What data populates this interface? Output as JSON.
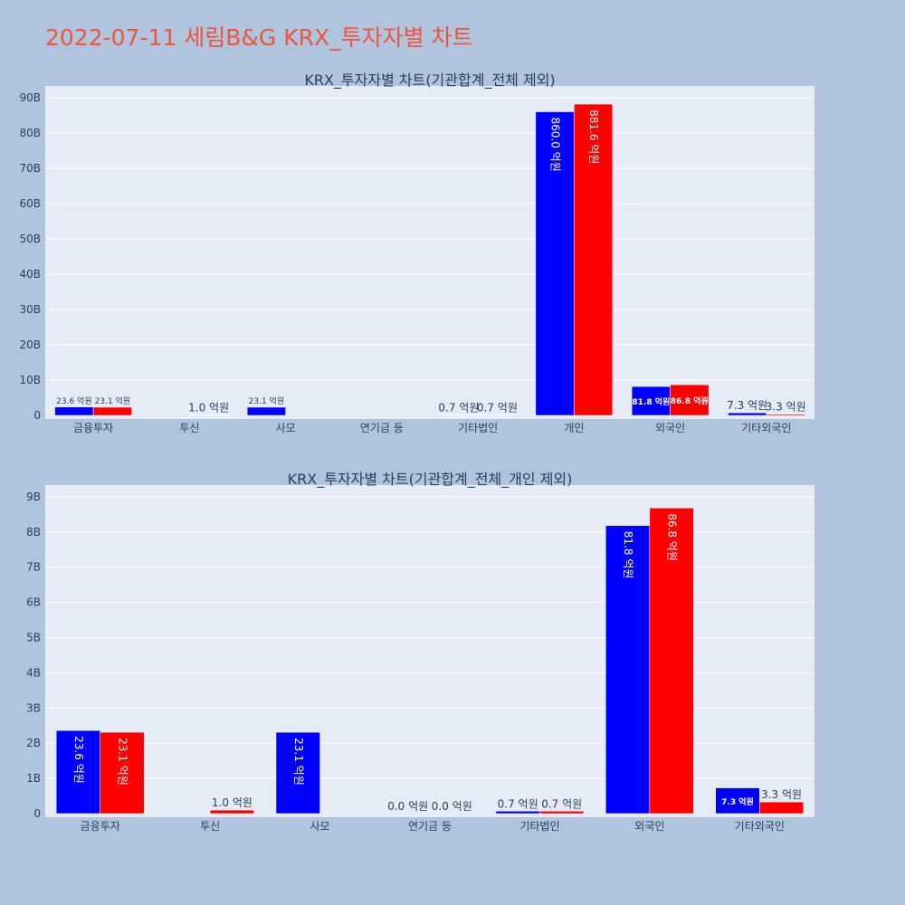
{
  "title": "2022-07-11 세림B&G KRX_투자자별 차트",
  "colors": {
    "series1": "#0000ff",
    "series2": "#ff0000",
    "plot_bg": "#e5ecf6",
    "page_bg": "#b0c4de",
    "title": "#ef553b",
    "text": "#2a3f5f"
  },
  "chart_data": [
    {
      "type": "bar",
      "title": "KRX_투자자별 차트(기관합계_전체 제외)",
      "categories": [
        "금융투자",
        "투신",
        "사모",
        "연기금 등",
        "기타법인",
        "개인",
        "외국인",
        "기타외국인"
      ],
      "yticks": [
        "0",
        "10B",
        "20B",
        "30B",
        "40B",
        "50B",
        "60B",
        "70B",
        "80B",
        "90B"
      ],
      "ylim": [
        0,
        91
      ],
      "grid": true,
      "series": [
        {
          "values": [
            2.36,
            null,
            2.31,
            null,
            0.07,
            86.0,
            8.18,
            0.73
          ],
          "labels": [
            "23.6 억원",
            "",
            "23.1 억원",
            "",
            "0.7 억원",
            "860.0 억원",
            "81.8 억원",
            "7.3 억원"
          ]
        },
        {
          "values": [
            2.31,
            0.1,
            null,
            null,
            0.07,
            88.16,
            8.68,
            0.33
          ],
          "labels": [
            "23.1 억원",
            "1.0 억원",
            "",
            "",
            "0.7 억원",
            "881.6 억원",
            "86.8 억원",
            "3.3 억원"
          ]
        }
      ]
    },
    {
      "type": "bar",
      "title": "KRX_투자자별 차트(기관합계_전체_개인 제외)",
      "categories": [
        "금융투자",
        "투신",
        "사모",
        "연기금 등",
        "기타법인",
        "외국인",
        "기타외국인"
      ],
      "yticks": [
        "0",
        "1B",
        "2B",
        "3B",
        "4B",
        "5B",
        "6B",
        "7B",
        "8B",
        "9B"
      ],
      "ylim": [
        0,
        9.1
      ],
      "grid": true,
      "series": [
        {
          "values": [
            2.36,
            null,
            2.31,
            0.0,
            0.07,
            8.18,
            0.73
          ],
          "labels": [
            "23.6 억원",
            "",
            "23.1 억원",
            "0.0 억원",
            "0.7 억원",
            "81.8 억원",
            "7.3 억원"
          ]
        },
        {
          "values": [
            2.31,
            0.1,
            null,
            0.0,
            0.07,
            8.68,
            0.33
          ],
          "labels": [
            "23.1 억원",
            "1.0 억원",
            "",
            "0.0 억원",
            "0.7 억원",
            "86.8 억원",
            "3.3 억원"
          ]
        }
      ]
    }
  ]
}
